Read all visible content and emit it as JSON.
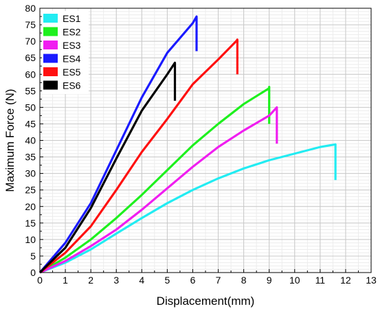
{
  "chart_data": {
    "type": "line",
    "xlabel": "Displacement(mm)",
    "ylabel": "Maximum Force (N)",
    "xlim": [
      0,
      13
    ],
    "ylim": [
      0,
      80
    ],
    "xticks": [
      "0",
      "1",
      "2",
      "3",
      "4",
      "5",
      "6",
      "7",
      "8",
      "9",
      "10",
      "11",
      "12",
      "13"
    ],
    "yticks": [
      "0",
      "5",
      "10",
      "15",
      "20",
      "25",
      "30",
      "35",
      "40",
      "45",
      "50",
      "55",
      "60",
      "65",
      "70",
      "75",
      "80"
    ],
    "grid": true,
    "minor_grid": true,
    "legend_position": "top-left",
    "series": [
      {
        "name": "ES1",
        "color": "#22ecf2",
        "x": [
          0,
          1,
          2,
          3,
          4,
          5,
          6,
          7,
          8,
          9,
          10,
          11,
          11.6,
          11.6
        ],
        "y": [
          0,
          3,
          7,
          11.8,
          16.5,
          21,
          25,
          28.5,
          31.5,
          34,
          36,
          38,
          38.8,
          28
        ]
      },
      {
        "name": "ES2",
        "color": "#1ef01e",
        "x": [
          0,
          1,
          2,
          3,
          4,
          5,
          6,
          7,
          8,
          9,
          9,
          9
        ],
        "y": [
          0,
          4.5,
          10,
          16.5,
          23.5,
          31,
          38.5,
          45,
          51,
          55.8,
          56.2,
          45
        ]
      },
      {
        "name": "ES3",
        "color": "#f01ef0",
        "x": [
          0,
          1,
          2,
          3,
          4,
          5,
          6,
          7,
          8,
          9,
          9.3,
          9.3
        ],
        "y": [
          0,
          3.5,
          8,
          13,
          19,
          25.5,
          32,
          38,
          43,
          47.5,
          50,
          39
        ]
      },
      {
        "name": "ES4",
        "color": "#1a1aff",
        "x": [
          0,
          1,
          2,
          3,
          4,
          5,
          6,
          6.15,
          6.15
        ],
        "y": [
          0,
          9,
          21,
          37,
          53,
          66.5,
          75.5,
          77.5,
          67
        ]
      },
      {
        "name": "ES5",
        "color": "#ff1010",
        "x": [
          0,
          1,
          2,
          3,
          4,
          5,
          6,
          7,
          7.7,
          7.75,
          7.75
        ],
        "y": [
          0,
          6,
          14,
          25,
          36.5,
          46.5,
          57,
          64.5,
          70,
          70.5,
          60
        ]
      },
      {
        "name": "ES6",
        "color": "#000000",
        "x": [
          0,
          1,
          2,
          3,
          4,
          5,
          5.3,
          5.3
        ],
        "y": [
          0,
          7.5,
          19.5,
          34.5,
          49,
          60,
          63.5,
          52
        ]
      }
    ]
  }
}
